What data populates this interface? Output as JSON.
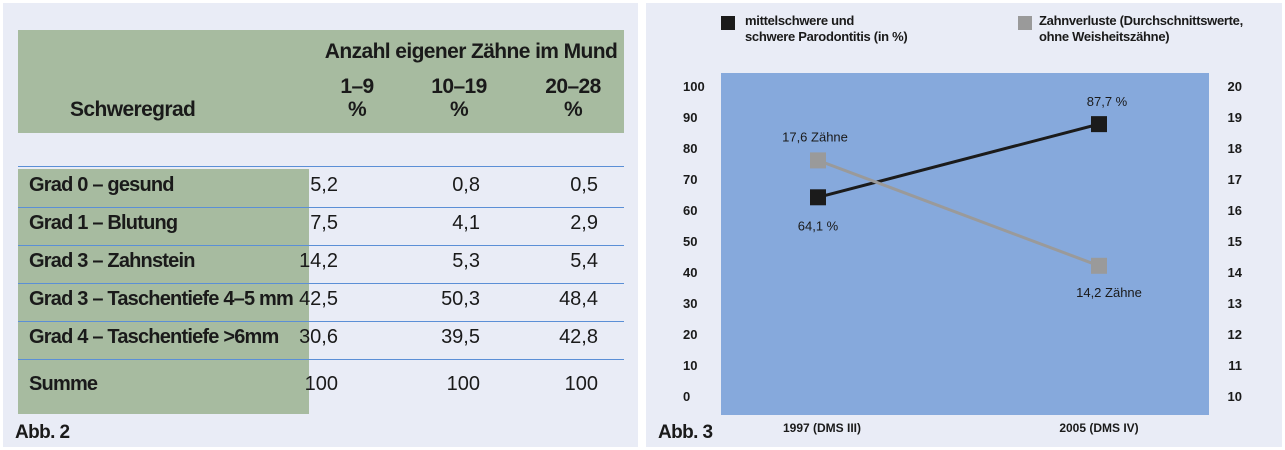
{
  "table": {
    "header_title": "Anzahl eigener Zähne im Mund",
    "row_header": "Schweregrad",
    "columns": [
      {
        "range": "1–9",
        "unit": "%"
      },
      {
        "range": "10–19",
        "unit": "%"
      },
      {
        "range": "20–28",
        "unit": "%"
      }
    ],
    "rows": [
      {
        "label": "Grad 0 – gesund",
        "values": [
          "5,2",
          "0,8",
          "0,5"
        ]
      },
      {
        "label": "Grad 1 – Blutung",
        "values": [
          "7,5",
          "4,1",
          "2,9"
        ]
      },
      {
        "label": "Grad 3 – Zahnstein",
        "values": [
          "14,2",
          "5,3",
          "5,4"
        ]
      },
      {
        "label": "Grad 3 – Taschentiefe 4–5 mm",
        "values": [
          "42,5",
          "50,3",
          "48,4"
        ]
      },
      {
        "label": "Grad 4 – Taschentiefe >6mm",
        "values": [
          "30,6",
          "39,5",
          "42,8"
        ]
      },
      {
        "label": "Summe",
        "values": [
          "100",
          "100",
          "100"
        ]
      }
    ],
    "caption": "Abb. 2"
  },
  "chart_data": {
    "type": "line",
    "caption": "Abb. 3",
    "categories": [
      "1997 (DMS III)",
      "2005 (DMS IV)"
    ],
    "y_left": {
      "min": 0,
      "max": 100,
      "ticks": [
        "0",
        "10",
        "20",
        "30",
        "40",
        "50",
        "60",
        "70",
        "80",
        "90",
        "100"
      ]
    },
    "y_right": {
      "min": 10,
      "max": 20,
      "ticks": [
        "10",
        "11",
        "12",
        "13",
        "14",
        "15",
        "16",
        "17",
        "18",
        "19",
        "20"
      ]
    },
    "series": [
      {
        "name_line1": "mittelschwere und",
        "name_line2": "schwere Parodontitis (in %)",
        "axis": "left",
        "values": [
          64.1,
          87.7
        ],
        "labels": [
          "64,1 %",
          "87,7 %"
        ],
        "color": "#1b1b1b"
      },
      {
        "name_line1": "Zahnverluste (Durchschnittswerte,",
        "name_line2": "ohne Weisheitszähne)",
        "axis": "right",
        "values": [
          17.6,
          14.2
        ],
        "labels": [
          "17,6 Zähne",
          "14,2 Zähne"
        ],
        "color": "#9a9a9a"
      }
    ],
    "plot_background": "#86a9dc",
    "grid": false
  }
}
